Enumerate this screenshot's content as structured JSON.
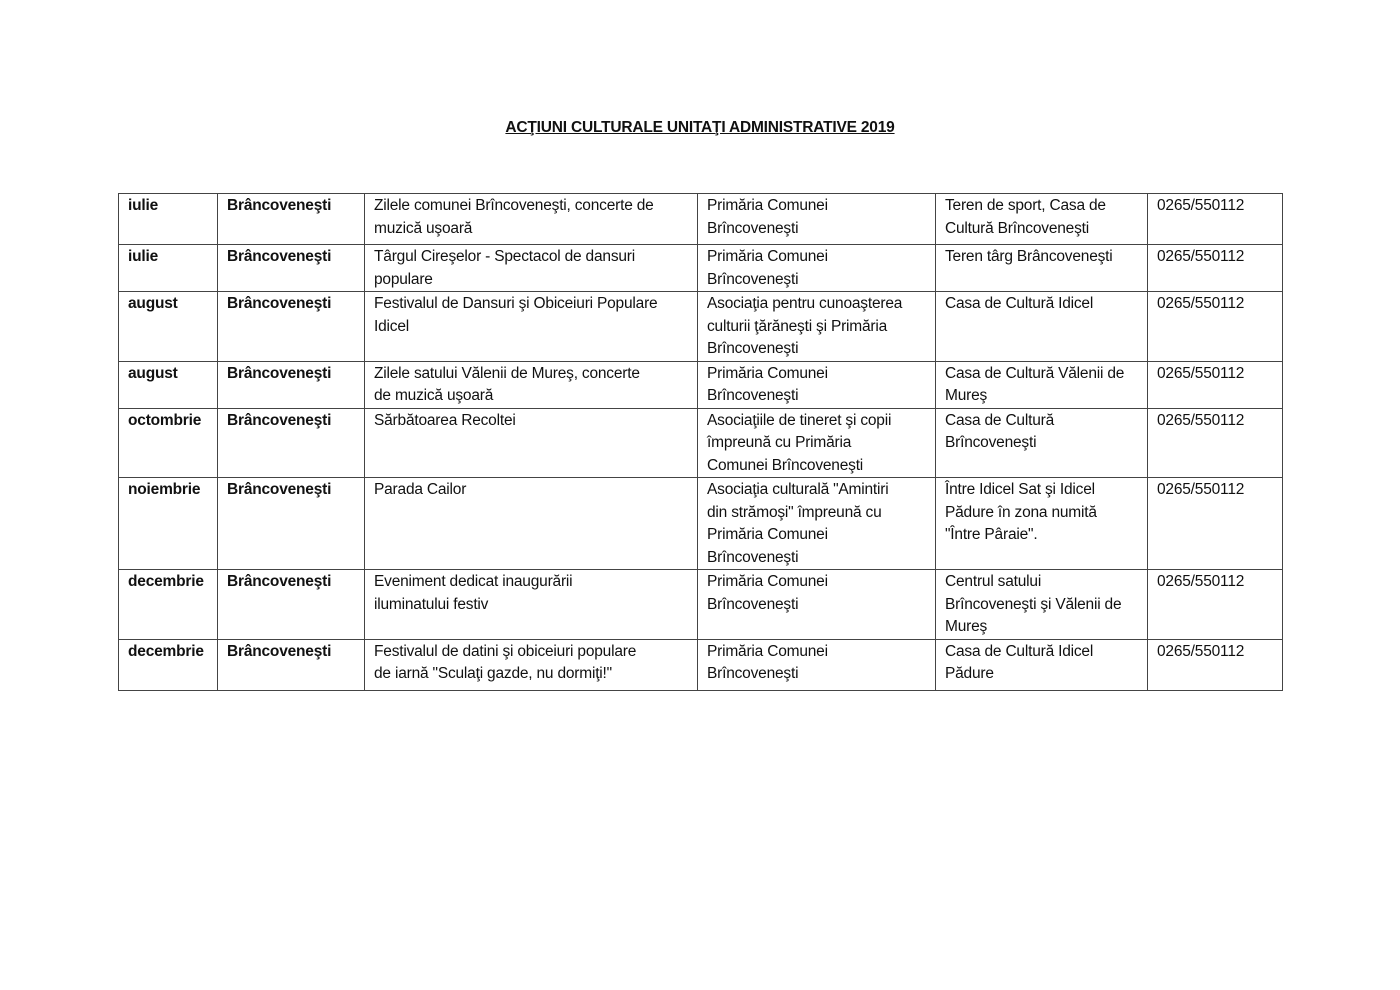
{
  "title": "ACŢIUNI CULTURALE UNITAŢI ADMINISTRATIVE 2019",
  "rows": [
    {
      "month": "iulie",
      "locality": "Brâncoveneşti",
      "event": [
        "Zilele comunei Brîncoveneşti, concerte de",
        "muzică uşoară"
      ],
      "organizer": [
        "Primăria Comunei",
        "Brîncoveneşti"
      ],
      "venue": [
        "Teren de sport, Casa de",
        "Cultură Brîncoveneşti"
      ],
      "phone": "0265/550112"
    },
    {
      "month": "iulie",
      "locality": "Brâncoveneşti",
      "event": [
        "Târgul Cireşelor - Spectacol de dansuri",
        "populare"
      ],
      "organizer": [
        "Primăria Comunei",
        "Brîncoveneşti"
      ],
      "venue": [
        "Teren târg Brâncoveneşti"
      ],
      "phone": "0265/550112"
    },
    {
      "month": "august",
      "locality": "Brâncoveneşti",
      "event": [
        "Festivalul de Dansuri şi Obiceiuri Populare",
        "Idicel"
      ],
      "organizer": [
        "Asociaţia pentru cunoaşterea",
        "culturii ţărăneşti şi Primăria",
        "Brîncoveneşti"
      ],
      "venue": [
        "Casa de Cultură Idicel"
      ],
      "phone": "0265/550112"
    },
    {
      "month": "august",
      "locality": "Brâncoveneşti",
      "event": [
        "Zilele satului Vălenii de Mureş, concerte",
        "de muzică uşoară"
      ],
      "organizer": [
        "Primăria Comunei",
        "Brîncoveneşti"
      ],
      "venue": [
        "Casa de Cultură Vălenii de",
        "Mureş"
      ],
      "phone": "0265/550112"
    },
    {
      "month": "octombrie",
      "locality": "Brâncoveneşti",
      "event": [
        "Sărbătoarea Recoltei"
      ],
      "organizer": [
        "Asociaţiile de tineret şi copii",
        "împreună cu Primăria",
        "Comunei Brîncoveneşti"
      ],
      "venue": [
        "Casa de Cultură",
        "Brîncoveneşti"
      ],
      "phone": "0265/550112"
    },
    {
      "month": "noiembrie",
      "locality": "Brâncoveneşti",
      "event": [
        "Parada Cailor"
      ],
      "organizer": [
        "Asociaţia culturală \"Amintiri",
        "din strămoşi\" împreună cu",
        "Primăria Comunei",
        "Brîncoveneşti"
      ],
      "venue": [
        "Între Idicel Sat şi Idicel",
        "Pădure în zona numită",
        "\"Între Pâraie\"."
      ],
      "phone": "0265/550112"
    },
    {
      "month": "decembrie",
      "locality": "Brâncoveneşti",
      "event": [
        "Eveniment dedicat inaugurării",
        "iluminatului festiv"
      ],
      "organizer": [
        "Primăria Comunei",
        "Brîncoveneşti"
      ],
      "venue": [
        "Centrul satului",
        "Brîncoveneşti şi Vălenii de",
        "Mureş"
      ],
      "phone": "0265/550112"
    },
    {
      "month": "decembrie",
      "locality": "Brâncoveneşti",
      "event": [
        "Festivalul de datini şi obiceiuri populare",
        "de iarnă \"Sculaţi gazde, nu dormiţi!\""
      ],
      "organizer": [
        "Primăria Comunei",
        "Brîncoveneşti"
      ],
      "venue": [
        "Casa de Cultură Idicel",
        "Pădure"
      ],
      "phone": "0265/550112"
    }
  ]
}
